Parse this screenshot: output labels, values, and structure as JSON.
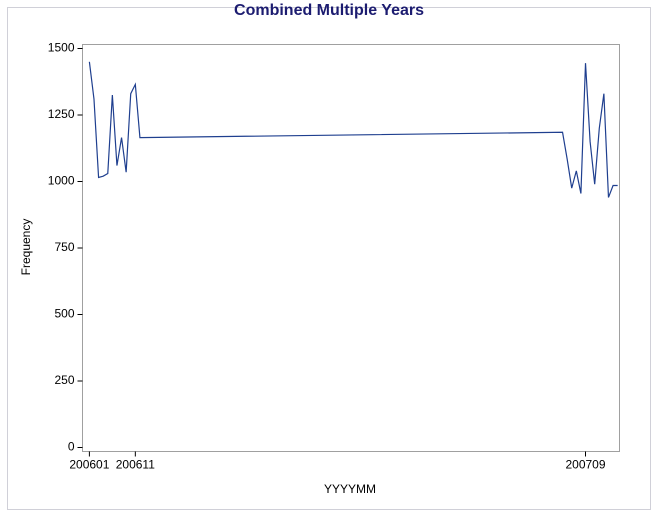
{
  "chart_data": {
    "type": "line",
    "title": "Combined Multiple Years",
    "x_label": "YYYYMM",
    "y_label": "Frequency",
    "x": [
      200601,
      200602,
      200603,
      200604,
      200605,
      200606,
      200607,
      200608,
      200609,
      200610,
      200611,
      200612,
      200704,
      200705,
      200706,
      200707,
      200708,
      200709,
      200710,
      200711,
      200712,
      200713,
      200714,
      200715,
      200716
    ],
    "series": [
      {
        "name": "Frequency",
        "color": "#1f3f8f",
        "values": [
          1450,
          1310,
          1015,
          1020,
          1030,
          1325,
          1060,
          1165,
          1035,
          1330,
          1365,
          1165,
          1185,
          1085,
          975,
          1040,
          955,
          1445,
          1150,
          990,
          1200,
          1330,
          940,
          985,
          985
        ]
      }
    ],
    "xlim": [
      200599.5,
      200716.4
    ],
    "xticks": [
      200601,
      200611,
      200709
    ],
    "ylim": [
      -15,
      1515
    ],
    "yticks": [
      0,
      250,
      500,
      750,
      1000,
      1250,
      1500
    ]
  }
}
